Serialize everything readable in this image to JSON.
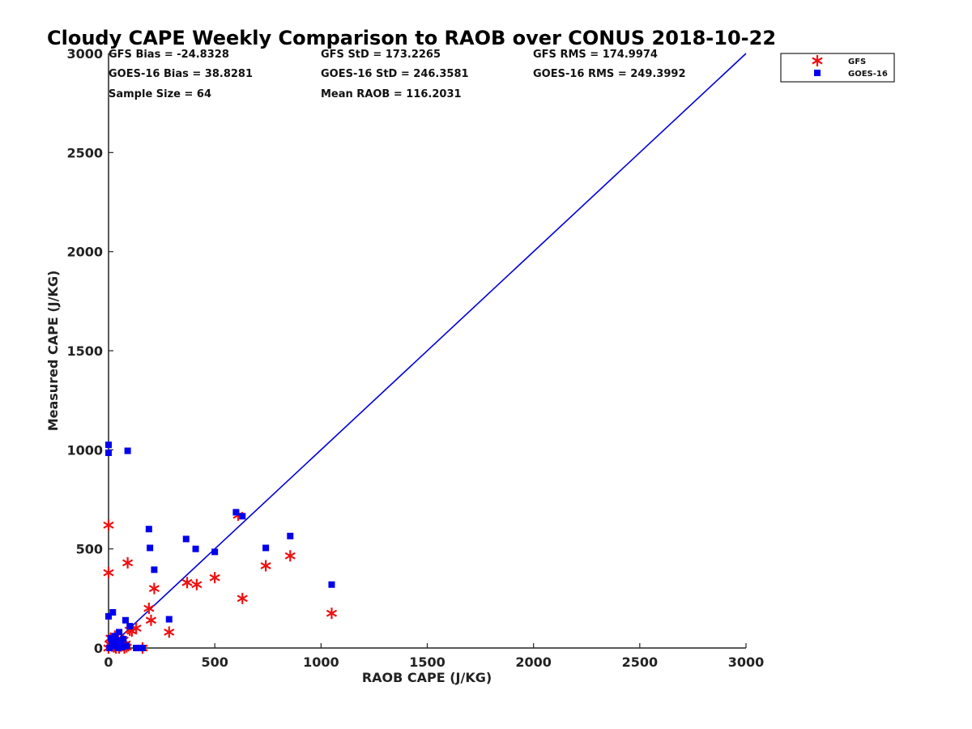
{
  "chart_data": {
    "type": "scatter",
    "title": "Cloudy CAPE Weekly Comparison to RAOB over CONUS 2018-10-22",
    "xlabel": "RAOB CAPE (J/KG)",
    "ylabel": "Measured CAPE (J/KG)",
    "xlim": [
      0,
      3000
    ],
    "ylim": [
      0,
      3000
    ],
    "xticks": [
      "0",
      "500",
      "1000",
      "1500",
      "2000",
      "2500",
      "3000"
    ],
    "yticks": [
      "0",
      "500",
      "1000",
      "1500",
      "2000",
      "2500",
      "3000"
    ],
    "grid": false,
    "legend_position": "top-right, outside plot",
    "stats": {
      "gfs_bias": "GFS Bias = -24.8328",
      "goes_bias": "GOES-16 Bias = 38.8281",
      "sample_size": "Sample Size = 64",
      "gfs_std": "GFS StD = 173.2265",
      "goes_std": "GOES-16 StD = 246.3581",
      "mean_raob": "Mean RAOB = 116.2031",
      "gfs_rms": "GFS RMS = 174.9974",
      "goes_rms": "GOES-16 RMS = 249.3992"
    },
    "reference_line": {
      "x": [
        0,
        3000
      ],
      "y": [
        0,
        3000
      ],
      "color": "#0000dd"
    },
    "series": [
      {
        "name": "GFS",
        "marker": "asterisk",
        "color": "#ee1111",
        "points": [
          [
            0,
            620
          ],
          [
            0,
            380
          ],
          [
            0,
            0
          ],
          [
            5,
            20
          ],
          [
            10,
            50
          ],
          [
            15,
            10
          ],
          [
            20,
            30
          ],
          [
            25,
            5
          ],
          [
            30,
            60
          ],
          [
            35,
            0
          ],
          [
            40,
            15
          ],
          [
            45,
            40
          ],
          [
            50,
            0
          ],
          [
            55,
            25
          ],
          [
            60,
            10
          ],
          [
            70,
            40
          ],
          [
            75,
            0
          ],
          [
            80,
            20
          ],
          [
            85,
            5
          ],
          [
            90,
            430
          ],
          [
            100,
            90
          ],
          [
            110,
            85
          ],
          [
            130,
            100
          ],
          [
            160,
            0
          ],
          [
            190,
            200
          ],
          [
            200,
            140
          ],
          [
            215,
            300
          ],
          [
            285,
            80
          ],
          [
            370,
            330
          ],
          [
            415,
            320
          ],
          [
            500,
            355
          ],
          [
            610,
            670
          ],
          [
            630,
            250
          ],
          [
            740,
            415
          ],
          [
            855,
            465
          ],
          [
            1050,
            175
          ]
        ]
      },
      {
        "name": "GOES-16",
        "marker": "square",
        "color": "#0000ee",
        "points": [
          [
            0,
            1025
          ],
          [
            0,
            985
          ],
          [
            0,
            160
          ],
          [
            5,
            0
          ],
          [
            10,
            50
          ],
          [
            15,
            30
          ],
          [
            20,
            180
          ],
          [
            25,
            10
          ],
          [
            30,
            60
          ],
          [
            35,
            40
          ],
          [
            40,
            20
          ],
          [
            45,
            0
          ],
          [
            50,
            80
          ],
          [
            55,
            35
          ],
          [
            65,
            5
          ],
          [
            70,
            45
          ],
          [
            80,
            140
          ],
          [
            85,
            10
          ],
          [
            90,
            995
          ],
          [
            100,
            110
          ],
          [
            130,
            0
          ],
          [
            160,
            0
          ],
          [
            190,
            600
          ],
          [
            195,
            505
          ],
          [
            215,
            395
          ],
          [
            285,
            145
          ],
          [
            365,
            550
          ],
          [
            410,
            500
          ],
          [
            500,
            485
          ],
          [
            600,
            685
          ],
          [
            630,
            665
          ],
          [
            740,
            505
          ],
          [
            855,
            565
          ],
          [
            1050,
            320
          ]
        ]
      }
    ]
  }
}
